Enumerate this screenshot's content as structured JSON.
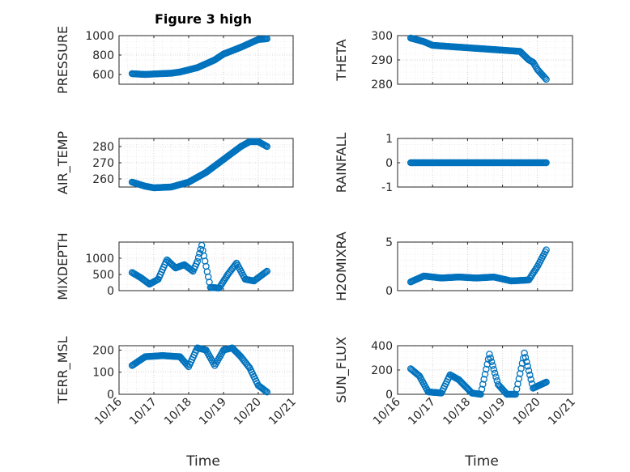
{
  "figure": {
    "title": "Figure 3 high",
    "xlabel": "Time",
    "x_tick_labels": [
      "10/16",
      "10/17",
      "10/18",
      "10/19",
      "10/20",
      "10/21"
    ],
    "marker_color": "#0072bd",
    "axis_color": "#262626",
    "background": "#ffffff"
  },
  "chart_data": [
    {
      "type": "scatter",
      "marker": "circle",
      "title": "Figure 3 high",
      "ylabel": "PRESSURE",
      "xlabel": "Time",
      "xlim": [
        "10/16",
        "10/21"
      ],
      "ylim": [
        500,
        1000
      ],
      "yticks": [
        600,
        800,
        1000
      ],
      "grid": true,
      "x": [
        "10/16 09:00",
        "10/16 18:00",
        "10/17 00:00",
        "10/17 12:00",
        "10/17 18:00",
        "10/18 06:00",
        "10/18 18:00",
        "10/19 00:00",
        "10/19 12:00",
        "10/19 18:00",
        "10/20 00:00",
        "10/20 06:00"
      ],
      "y": [
        608,
        600,
        605,
        613,
        625,
        670,
        750,
        810,
        880,
        920,
        960,
        968
      ]
    },
    {
      "type": "scatter",
      "marker": "circle",
      "ylabel": "THETA",
      "xlim": [
        "10/16",
        "10/21"
      ],
      "ylim": [
        280,
        300
      ],
      "yticks": [
        280,
        290,
        300
      ],
      "grid": true,
      "x": [
        "10/16 09:00",
        "10/16 18:00",
        "10/17 00:00",
        "10/17 12:00",
        "10/18 00:00",
        "10/18 12:00",
        "10/19 00:00",
        "10/19 12:00",
        "10/19 18:00",
        "10/19 21:00",
        "10/20 00:00",
        "10/20 06:00"
      ],
      "y": [
        299,
        297.5,
        296,
        295.5,
        295,
        294.5,
        294,
        293.5,
        290,
        289,
        286,
        282
      ]
    },
    {
      "type": "scatter",
      "marker": "circle",
      "ylabel": "AIR_TEMP",
      "xlim": [
        "10/16",
        "10/21"
      ],
      "ylim": [
        255,
        285
      ],
      "yticks": [
        260,
        270,
        280
      ],
      "grid": true,
      "x": [
        "10/16 09:00",
        "10/16 18:00",
        "10/17 00:00",
        "10/17 12:00",
        "10/18 00:00",
        "10/18 12:00",
        "10/19 00:00",
        "10/19 12:00",
        "10/19 18:00",
        "10/20 00:00",
        "10/20 06:00"
      ],
      "y": [
        258,
        255.5,
        254.5,
        255,
        258,
        264,
        272,
        280,
        283,
        283,
        280
      ]
    },
    {
      "type": "scatter",
      "marker": "circle",
      "ylabel": "RAINFALL",
      "xlim": [
        "10/16",
        "10/21"
      ],
      "ylim": [
        -1,
        1
      ],
      "yticks": [
        -1,
        0,
        1
      ],
      "grid": true,
      "x": [
        "10/16 09:00",
        "10/16 18:00",
        "10/17 06:00",
        "10/17 18:00",
        "10/18 06:00",
        "10/18 18:00",
        "10/19 06:00",
        "10/19 18:00",
        "10/20 06:00"
      ],
      "y": [
        0,
        0,
        0,
        0,
        0,
        0,
        0,
        0,
        0
      ]
    },
    {
      "type": "scatter",
      "marker": "circle",
      "ylabel": "MIXDEPTH",
      "xlim": [
        "10/16",
        "10/21"
      ],
      "ylim": [
        0,
        1500
      ],
      "yticks": [
        0,
        500,
        1000
      ],
      "grid": true,
      "x": [
        "10/16 09:00",
        "10/16 15:00",
        "10/16 21:00",
        "10/17 03:00",
        "10/17 09:00",
        "10/17 15:00",
        "10/17 21:00",
        "10/18 03:00",
        "10/18 06:00",
        "10/18 09:00",
        "10/18 15:00",
        "10/18 21:00",
        "10/19 03:00",
        "10/19 09:00",
        "10/19 15:00",
        "10/19 21:00",
        "10/20 03:00",
        "10/20 06:00"
      ],
      "y": [
        560,
        400,
        200,
        350,
        950,
        700,
        800,
        600,
        900,
        1400,
        100,
        80,
        500,
        850,
        350,
        300,
        500,
        600
      ]
    },
    {
      "type": "scatter",
      "marker": "circle",
      "ylabel": "H2OMIXRA",
      "xlim": [
        "10/16",
        "10/21"
      ],
      "ylim": [
        0,
        5
      ],
      "yticks": [
        0,
        5
      ],
      "grid": true,
      "x": [
        "10/16 09:00",
        "10/16 18:00",
        "10/17 06:00",
        "10/17 18:00",
        "10/18 06:00",
        "10/18 18:00",
        "10/19 06:00",
        "10/19 18:00",
        "10/20 00:00",
        "10/20 06:00"
      ],
      "y": [
        0.9,
        1.5,
        1.3,
        1.4,
        1.3,
        1.4,
        1.0,
        1.1,
        2.5,
        4.2
      ]
    },
    {
      "type": "scatter",
      "marker": "circle",
      "ylabel": "TERR_MSL",
      "xlim": [
        "10/16",
        "10/21"
      ],
      "ylim": [
        0,
        220
      ],
      "yticks": [
        0,
        100,
        200
      ],
      "grid": true,
      "x": [
        "10/16 09:00",
        "10/16 18:00",
        "10/17 06:00",
        "10/17 18:00",
        "10/18 00:00",
        "10/18 06:00",
        "10/18 12:00",
        "10/18 18:00",
        "10/19 00:00",
        "10/19 06:00",
        "10/19 12:00",
        "10/19 18:00",
        "10/20 00:00",
        "10/20 06:00"
      ],
      "y": [
        130,
        170,
        175,
        170,
        125,
        210,
        200,
        130,
        200,
        210,
        170,
        120,
        40,
        10
      ]
    },
    {
      "type": "scatter",
      "marker": "circle",
      "ylabel": "SUN_FLUX",
      "xlim": [
        "10/16",
        "10/21"
      ],
      "ylim": [
        0,
        400
      ],
      "yticks": [
        0,
        200,
        400
      ],
      "grid": true,
      "x": [
        "10/16 09:00",
        "10/16 15:00",
        "10/16 21:00",
        "10/17 06:00",
        "10/17 12:00",
        "10/17 18:00",
        "10/18 03:00",
        "10/18 09:00",
        "10/18 15:00",
        "10/18 21:00",
        "10/19 03:00",
        "10/19 09:00",
        "10/19 15:00",
        "10/19 21:00",
        "10/20 06:00"
      ],
      "y": [
        210,
        150,
        20,
        10,
        160,
        120,
        10,
        0,
        330,
        80,
        0,
        0,
        340,
        50,
        100
      ]
    }
  ]
}
